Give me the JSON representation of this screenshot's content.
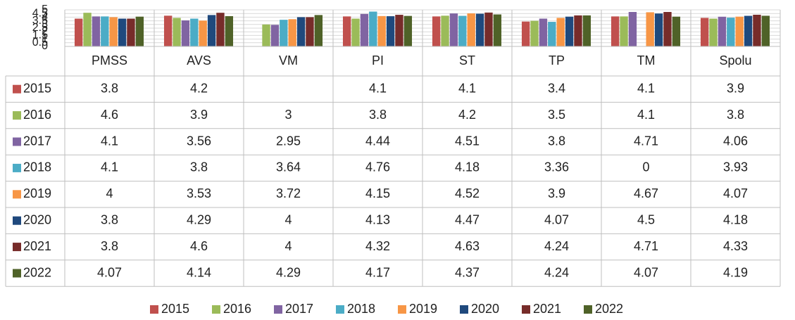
{
  "chart_data": {
    "type": "bar",
    "categories": [
      "PMSS",
      "AVS",
      "VM",
      "PI",
      "ST",
      "TP",
      "TM",
      "Spolu"
    ],
    "series": [
      {
        "name": "2015",
        "color": "#c0504d",
        "values": [
          3.8,
          4.2,
          null,
          4.1,
          4.1,
          3.4,
          4.1,
          3.9
        ]
      },
      {
        "name": "2016",
        "color": "#9bbb59",
        "values": [
          4.6,
          3.9,
          3,
          3.8,
          4.2,
          3.5,
          4.1,
          3.8
        ]
      },
      {
        "name": "2017",
        "color": "#8064a2",
        "values": [
          4.1,
          3.56,
          2.95,
          4.44,
          4.51,
          3.8,
          4.71,
          4.06
        ]
      },
      {
        "name": "2018",
        "color": "#4bacc6",
        "values": [
          4.1,
          3.8,
          3.64,
          4.76,
          4.18,
          3.36,
          0,
          3.93
        ]
      },
      {
        "name": "2019",
        "color": "#f79646",
        "values": [
          4,
          3.53,
          3.72,
          4.15,
          4.52,
          3.9,
          4.67,
          4.07
        ]
      },
      {
        "name": "2020",
        "color": "#1f497d",
        "values": [
          3.8,
          4.29,
          4,
          4.13,
          4.47,
          4.07,
          4.5,
          4.18
        ]
      },
      {
        "name": "2021",
        "color": "#772c2a",
        "values": [
          3.8,
          4.6,
          4,
          4.32,
          4.63,
          4.24,
          4.71,
          4.33
        ]
      },
      {
        "name": "2022",
        "color": "#4f6228",
        "values": [
          4.07,
          4.14,
          4.29,
          4.17,
          4.37,
          4.24,
          4.07,
          4.19
        ]
      }
    ],
    "ylim": [
      0,
      5
    ],
    "yticks": [
      0,
      0.5,
      1,
      1.5,
      2,
      2.5,
      3,
      3.5,
      4,
      4.5,
      5
    ],
    "grid": true,
    "data_table": true,
    "legend": "bottom"
  }
}
